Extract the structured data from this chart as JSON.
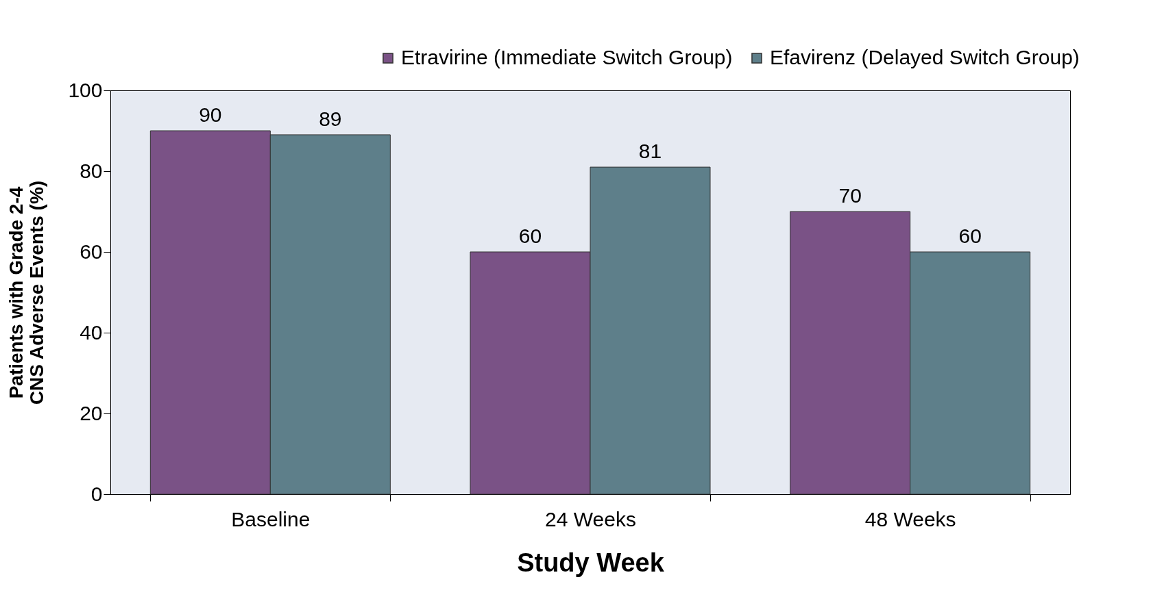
{
  "chart_data": {
    "type": "bar",
    "xlabel": "Study Week",
    "ylabel": "Patients with Grade 2-4\nCNS Adverse Events (%)",
    "categories": [
      "Baseline",
      "24 Weeks",
      "48 Weeks"
    ],
    "series": [
      {
        "name": "Etravirine (Immediate Switch Group)",
        "color": "#7a5286",
        "values": [
          90,
          60,
          70
        ]
      },
      {
        "name": "Efavirenz (Delayed Switch Group)",
        "color": "#5e7f8a",
        "values": [
          89,
          81,
          60
        ]
      }
    ],
    "ylim": [
      0,
      100
    ],
    "yticks": [
      0,
      20,
      40,
      60,
      80,
      100
    ],
    "data_labels": true,
    "grid": false,
    "legend": "top right"
  }
}
